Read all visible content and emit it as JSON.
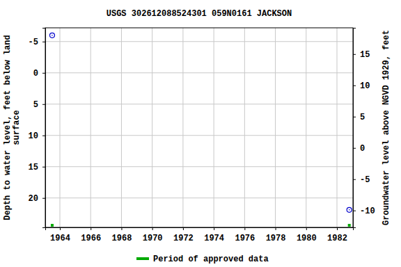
{
  "chart_data": {
    "type": "scatter",
    "title": "USGS 302612088524301 059N0161  JACKSON",
    "y_label": [
      "Depth to water level, feet below land",
      "surface"
    ],
    "y2_label": "Groundwater level above NGVD 1929, feet",
    "x": [
      1963.5,
      1982.8
    ],
    "series": [
      {
        "values": [
          -6.0,
          21.9
        ],
        "color": "#0000cc",
        "marker": "circle"
      }
    ],
    "periods": {
      "name": "Period of approved data",
      "color": "#00aa00",
      "x": [
        1963.5,
        1982.8
      ]
    },
    "xlim": [
      1963.05,
      1983.04
    ],
    "xticks": [
      1964,
      1966,
      1968,
      1970,
      1972,
      1974,
      1976,
      1978,
      1980,
      1982
    ],
    "ylim": [
      24.7,
      -7.2
    ],
    "yticks": [
      -5,
      0,
      5,
      10,
      15,
      20
    ],
    "y2lim": [
      -12.7,
      19.2
    ],
    "y2ticks": [
      15,
      10,
      5,
      0,
      -5,
      -10
    ],
    "grid": true
  }
}
